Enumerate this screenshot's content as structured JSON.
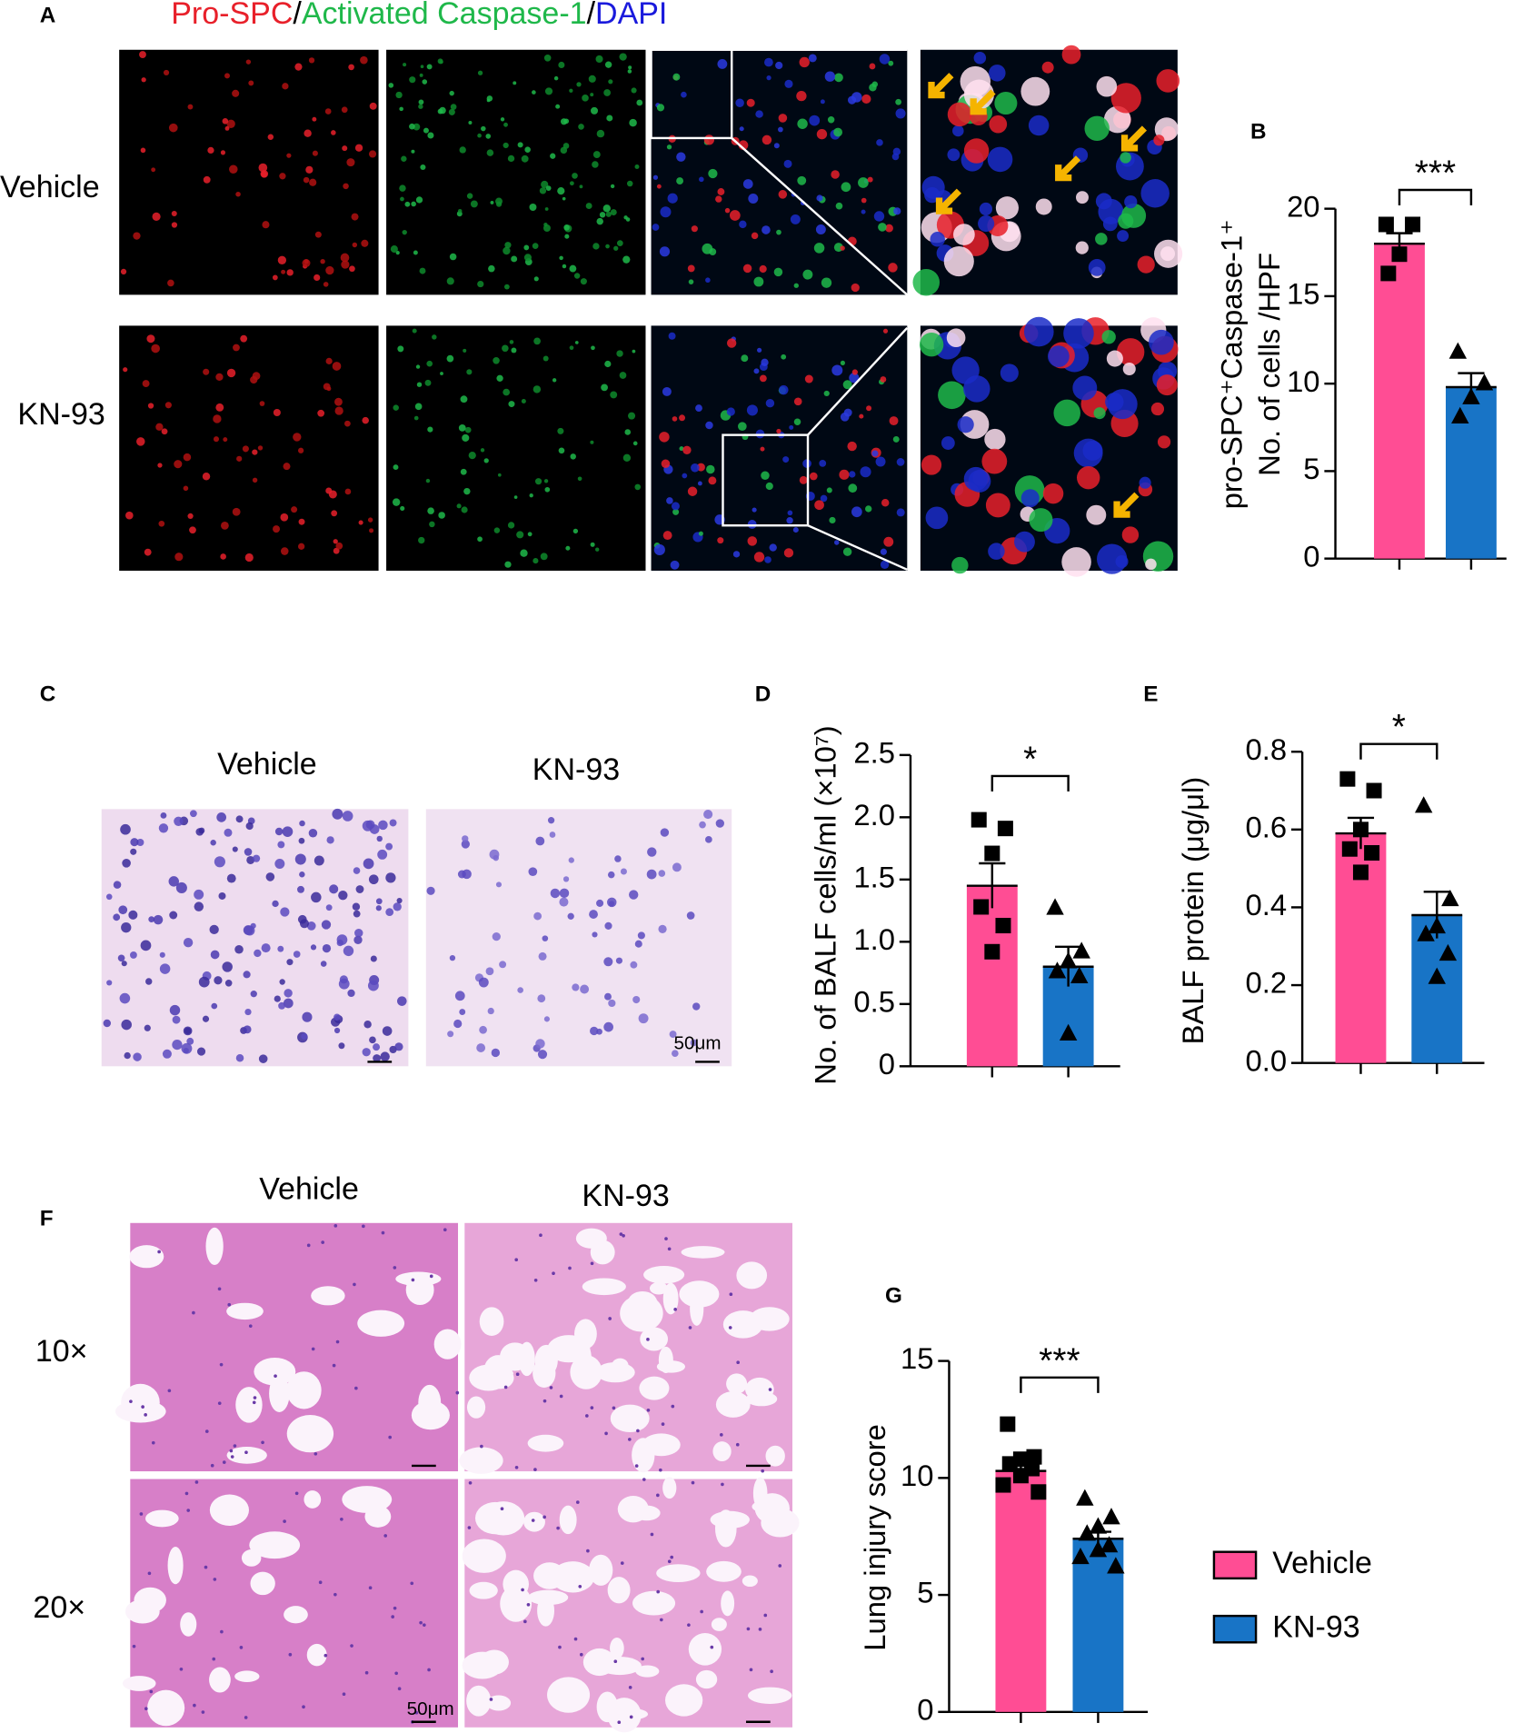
{
  "panels": {
    "A": {
      "label": "A",
      "title": [
        "Pro-SPC",
        "/",
        "Activated Caspase-1",
        "/",
        "DAPI"
      ],
      "rows": [
        "Vehicle",
        "KN-93"
      ]
    },
    "C": {
      "label": "C",
      "columns": [
        "Vehicle",
        "KN-93"
      ],
      "scale_bar": "50μm"
    },
    "F": {
      "label": "F",
      "columns": [
        "Vehicle",
        "KN-93"
      ],
      "rows": [
        "10×",
        "20×"
      ],
      "scale_bar": "50μm"
    }
  },
  "chart_data": [
    {
      "type": "bar",
      "panel": "B",
      "ylabel": [
        "pro-SPC⁺Caspase-1⁺",
        "No. of cells /HPF"
      ],
      "ylim": [
        0,
        20
      ],
      "yticks": [
        0,
        5,
        10,
        15,
        20
      ],
      "annotation": "***",
      "series": [
        {
          "color": "#ff4d94",
          "marker": "square",
          "value": 18.0,
          "error": 0.6,
          "points": [
            19.1,
            19.1,
            17.4,
            16.3
          ]
        },
        {
          "color": "#1874c6",
          "marker": "triangle",
          "value": 9.8,
          "error": 0.8,
          "points": [
            11.8,
            10.0,
            9.2,
            8.1
          ]
        }
      ]
    },
    {
      "type": "bar",
      "panel": "D",
      "ylabel": [
        "No. of BALF cells/ml (×10⁷)"
      ],
      "ylim": [
        0,
        2.5
      ],
      "yticks": [
        0,
        0.5,
        {
          "value": 1,
          "label": "1.0"
        },
        1.5,
        {
          "value": 2,
          "label": "2.0"
        },
        2.5
      ],
      "annotation": "*",
      "series": [
        {
          "color": "#ff4d94",
          "marker": "square",
          "value": 1.45,
          "error": 0.18,
          "points": [
            1.98,
            1.91,
            1.71,
            1.28,
            1.13,
            0.92
          ]
        },
        {
          "color": "#1874c6",
          "marker": "triangle",
          "value": 0.8,
          "error": 0.16,
          "points": [
            1.27,
            0.92,
            0.84,
            0.76,
            0.72,
            0.26
          ]
        }
      ]
    },
    {
      "type": "bar",
      "panel": "E",
      "ylabel": [
        "BALF protein (μg/μl)"
      ],
      "ylim": [
        0,
        0.8
      ],
      "yticks": [
        {
          "value": 0,
          "label": "0.0"
        },
        0.2,
        0.4,
        0.6,
        0.8
      ],
      "annotation": "*",
      "series": [
        {
          "color": "#ff4d94",
          "marker": "square",
          "value": 0.59,
          "error": 0.04,
          "points": [
            0.73,
            0.7,
            0.6,
            0.55,
            0.54,
            0.49
          ]
        },
        {
          "color": "#1874c6",
          "marker": "triangle",
          "value": 0.38,
          "error": 0.06,
          "points": [
            0.66,
            0.42,
            0.35,
            0.33,
            0.28,
            0.22
          ]
        }
      ]
    },
    {
      "type": "bar",
      "panel": "G",
      "ylabel": [
        "Lung injury score"
      ],
      "ylim": [
        0,
        15
      ],
      "yticks": [
        0,
        5,
        10,
        15
      ],
      "annotation": "***",
      "legend": true,
      "series": [
        {
          "name": "Vehicle",
          "color": "#ff4d94",
          "marker": "square",
          "value": 10.3,
          "error": 0.3,
          "points": [
            12.3,
            10.9,
            10.8,
            10.6,
            10.4,
            10.1,
            9.7,
            9.4
          ]
        },
        {
          "name": "KN-93",
          "color": "#1874c6",
          "marker": "triangle",
          "value": 7.4,
          "error": 0.3,
          "points": [
            9.1,
            8.3,
            7.9,
            7.6,
            7.1,
            6.9,
            6.6,
            6.2
          ]
        }
      ]
    }
  ]
}
